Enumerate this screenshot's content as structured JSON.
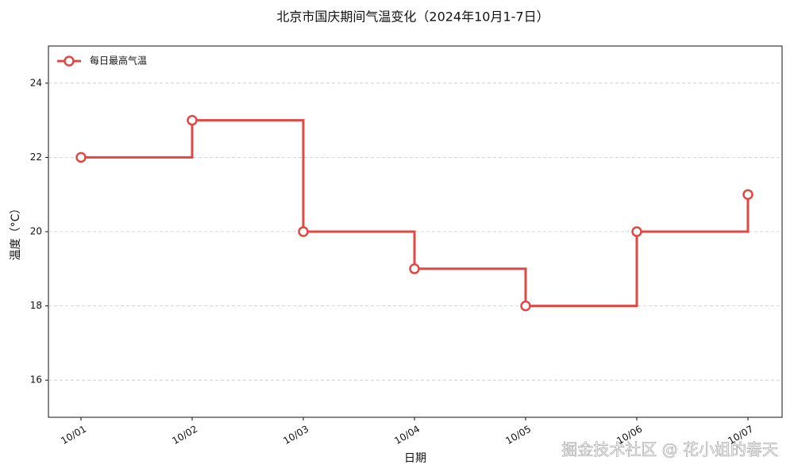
{
  "chart_data": {
    "type": "step",
    "title": "北京市国庆期间气温变化（2024年10月1-7日）",
    "x_label": "日期",
    "y_label": "温度（°C）",
    "categories": [
      "10/01",
      "10/02",
      "10/03",
      "10/04",
      "10/05",
      "10/06",
      "10/07"
    ],
    "series": [
      {
        "name": "每日最高气温",
        "color": "#e04843",
        "values": [
          22,
          23,
          20,
          19,
          18,
          20,
          21
        ]
      }
    ],
    "ylim": [
      15,
      25
    ],
    "yticks": [
      16,
      18,
      20,
      22,
      24
    ],
    "grid": true,
    "legend": "upper-left",
    "watermark": "掘金技术社区 @ 花小姐的春天"
  }
}
